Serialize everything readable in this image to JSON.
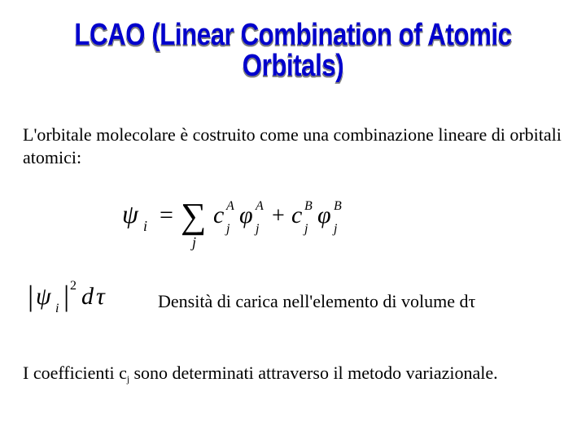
{
  "title": {
    "text": "LCAO (Linear Combination of Atomic Orbitals)",
    "color": "#0000cc",
    "shadow_light": "#ffffff",
    "shadow_dark": "#7f7f7f",
    "fontsize": 38,
    "font_family": "Arial Narrow"
  },
  "paragraph1": {
    "text": "L'orbitale molecolare è costruito come una combinazione lineare di orbitali atomici:",
    "fontsize": 22
  },
  "equation1": {
    "psi": "ψ",
    "psi_sub": "i",
    "eq": "=",
    "sigma": "∑",
    "sigma_sub": "j",
    "terms": [
      {
        "coef": "c",
        "coef_sup": "A",
        "coef_sub": "j",
        "phi": "φ",
        "phi_sup": "A",
        "phi_sub": "j"
      },
      {
        "coef": "c",
        "coef_sup": "B",
        "coef_sub": "j",
        "phi": "φ",
        "phi_sup": "B",
        "phi_sub": "j"
      }
    ],
    "plus": "+",
    "fontsize": 30,
    "color": "#000000"
  },
  "equation2": {
    "lbar": "|",
    "psi": "ψ",
    "psi_sub": "i",
    "rbar": "|",
    "sup": "2",
    "d": "d",
    "tau": "τ",
    "fontsize": 28,
    "color": "#000000"
  },
  "paragraph2": {
    "prefix": "Densità di carica nell'elemento di volume d",
    "tau": "τ",
    "fontsize": 22
  },
  "paragraph3": {
    "prefix": "I coefficienti c",
    "sub": "j",
    "suffix": " sono determinati attraverso il metodo variazionale.",
    "fontsize": 22
  },
  "background_color": "#ffffff"
}
